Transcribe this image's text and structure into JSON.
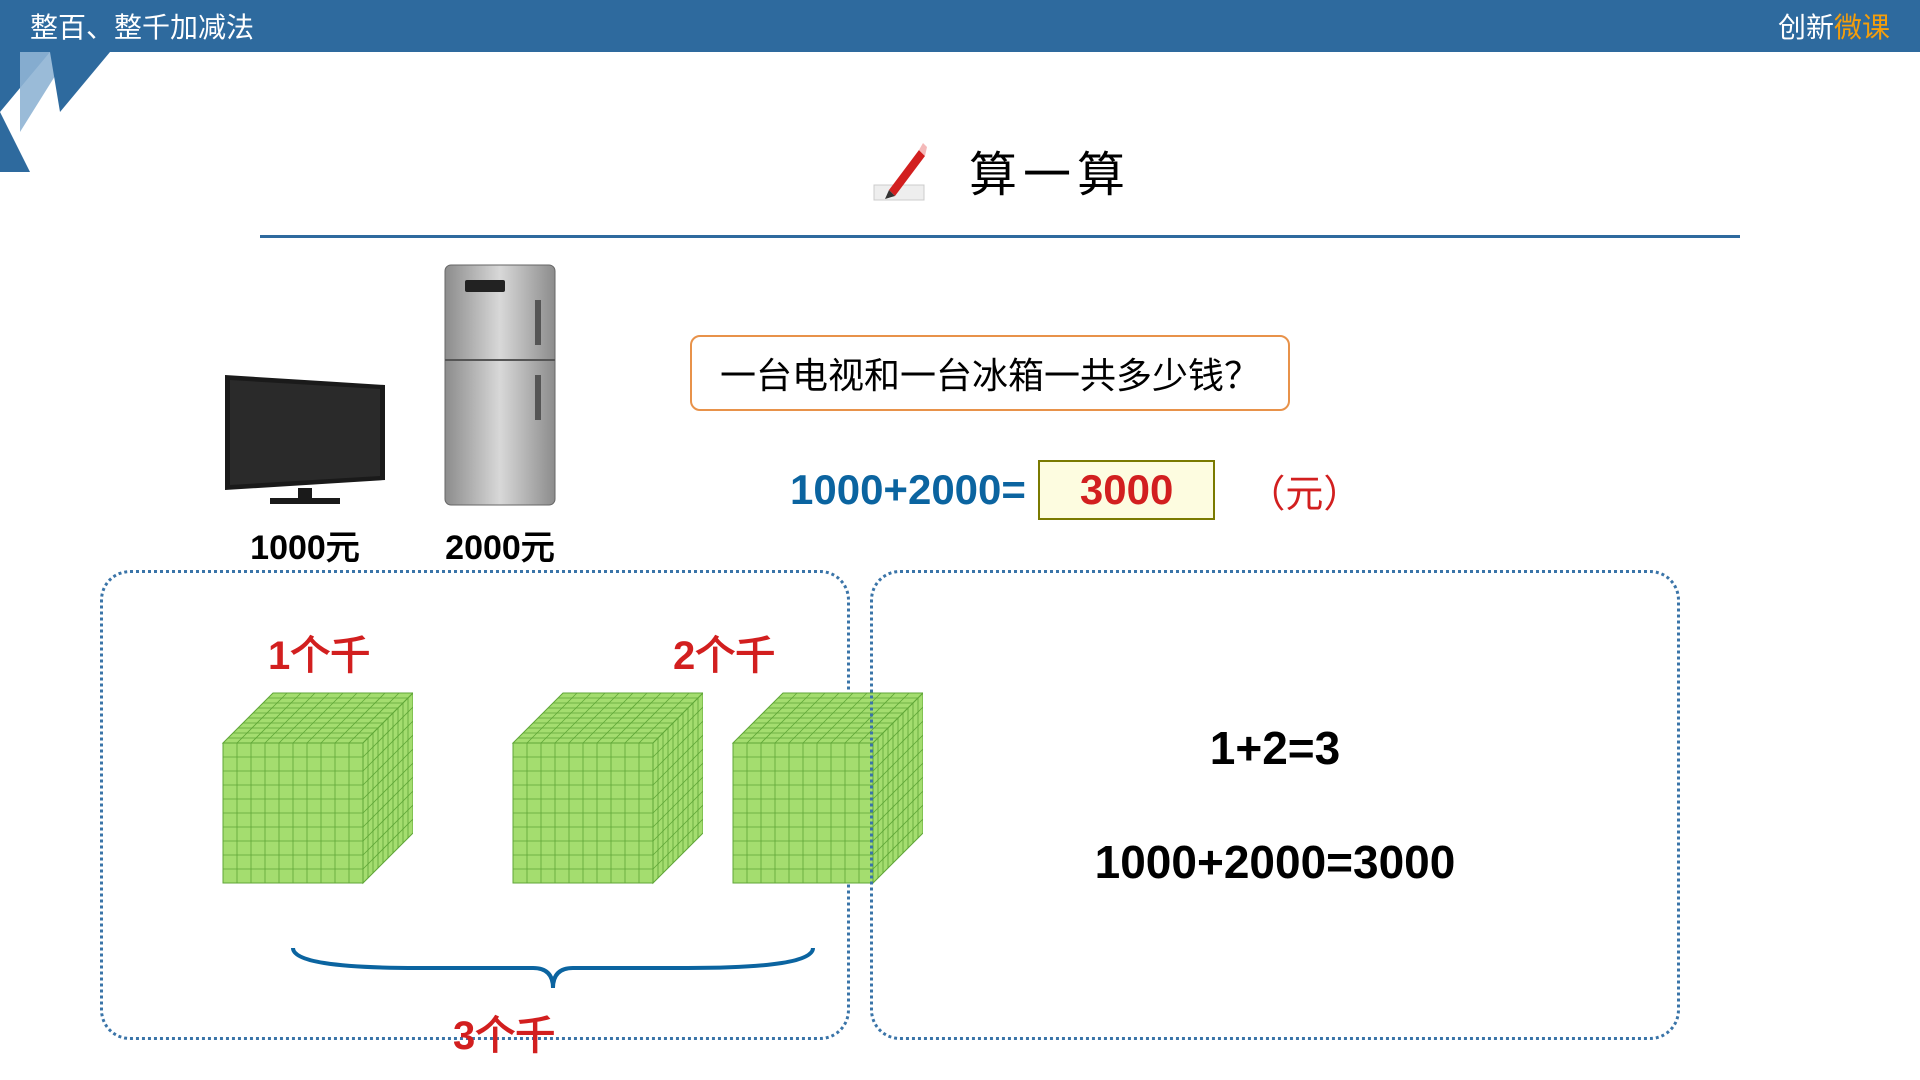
{
  "header": {
    "title": "整百、整千加减法",
    "brand_prefix": "创新",
    "brand_accent": "微课"
  },
  "section": {
    "title": "算一算",
    "heading_color": "#000000",
    "rule_color": "#2e6a9e"
  },
  "products": {
    "tv": {
      "price_label": "1000元",
      "color": "#1a1a1a"
    },
    "fridge": {
      "price_label": "2000元",
      "color": "#a9a9a9"
    }
  },
  "question": {
    "text": "一台电视和一台冰箱一共多少钱？",
    "border_color": "#e8924a"
  },
  "equation": {
    "lhs": "1000+2000=",
    "lhs_color": "#0b64a0",
    "answer": "3000",
    "answer_color": "#d21f1f",
    "answer_bg": "#fdfce0",
    "answer_border": "#7a7a00",
    "unit": "（元）",
    "unit_color": "#d21f1f"
  },
  "cubes": {
    "label1": "1个千",
    "label2": "2个千",
    "label3": "3个千",
    "fill": "#a4dd6f",
    "stroke": "#5fa637"
  },
  "math": {
    "line1": "1+2=3",
    "line2": "1000+2000=3000"
  },
  "colors": {
    "header_bg": "#2e6a9e",
    "panel_border": "#3a74a8",
    "red": "#d21f1f"
  }
}
